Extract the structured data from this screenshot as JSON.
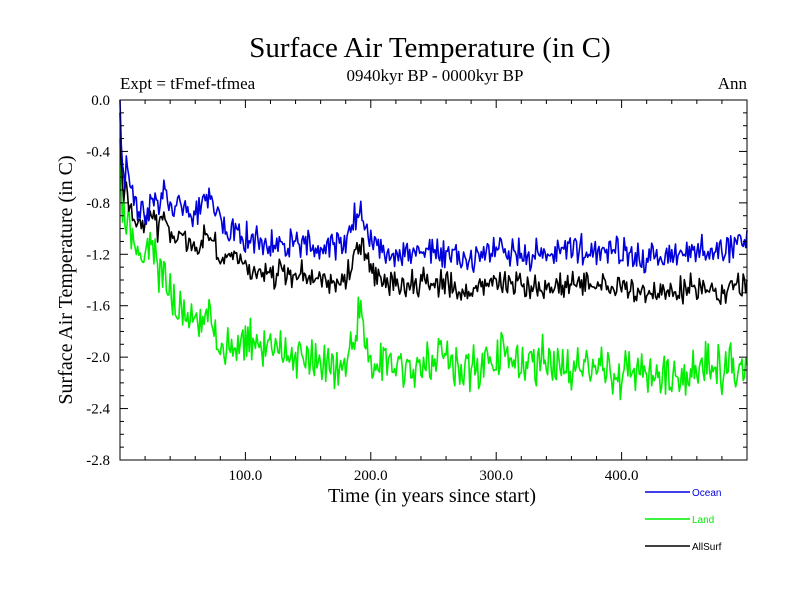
{
  "chart_data": {
    "type": "line",
    "title": "Surface Air Temperature (in C)",
    "subtitle": "0940kyr BP - 0000kyr BP",
    "left_label": "Expt = tFmef-tfmea",
    "right_label": "Ann",
    "xlabel": "Time (in years since start)",
    "ylabel": "Surface Air Temperature (in C)",
    "xlim": [
      0,
      500
    ],
    "ylim": [
      -2.8,
      0.0
    ],
    "x_ticks": [
      100,
      200,
      300,
      400
    ],
    "x_tick_labels": [
      "100.0",
      "200.0",
      "300.0",
      "400.0"
    ],
    "y_ticks": [
      0.0,
      -0.4,
      -0.8,
      -1.2,
      -1.6,
      -2.0,
      -2.4,
      -2.8
    ],
    "y_tick_labels": [
      "0.0",
      "-0.4",
      "-0.8",
      "-1.2",
      "-1.6",
      "-2.0",
      "-2.4",
      "-2.8"
    ],
    "legend_position": "bottom-right, outside plot",
    "series": [
      {
        "name": "Ocean",
        "color": "#0000dd",
        "x": [
          0,
          1,
          2,
          3,
          5,
          8,
          10,
          15,
          20,
          25,
          30,
          35,
          40,
          45,
          50,
          60,
          70,
          80,
          90,
          100,
          120,
          140,
          160,
          180,
          190,
          200,
          220,
          240,
          260,
          280,
          300,
          320,
          340,
          360,
          380,
          400,
          420,
          440,
          460,
          480,
          500
        ],
        "values": [
          0.0,
          -0.35,
          -0.5,
          -0.6,
          -0.55,
          -0.65,
          -0.8,
          -0.85,
          -0.9,
          -0.75,
          -0.85,
          -0.7,
          -0.8,
          -0.85,
          -0.8,
          -0.9,
          -0.75,
          -0.95,
          -1.0,
          -1.05,
          -1.15,
          -1.1,
          -1.15,
          -1.1,
          -0.85,
          -1.1,
          -1.2,
          -1.15,
          -1.2,
          -1.25,
          -1.15,
          -1.2,
          -1.2,
          -1.15,
          -1.2,
          -1.15,
          -1.25,
          -1.2,
          -1.15,
          -1.2,
          -1.1
        ]
      },
      {
        "name": "Land",
        "color": "#00ee00",
        "x": [
          0,
          1,
          2,
          3,
          5,
          8,
          10,
          15,
          20,
          25,
          30,
          35,
          40,
          45,
          50,
          60,
          70,
          80,
          90,
          100,
          120,
          140,
          160,
          180,
          190,
          200,
          220,
          240,
          260,
          280,
          300,
          320,
          340,
          360,
          380,
          400,
          420,
          440,
          460,
          480,
          500
        ],
        "values": [
          -0.3,
          -0.7,
          -0.95,
          -0.9,
          -1.0,
          -1.05,
          -1.15,
          -1.2,
          -1.25,
          -1.2,
          -1.35,
          -1.3,
          -1.5,
          -1.6,
          -1.65,
          -1.75,
          -1.7,
          -1.85,
          -1.9,
          -1.85,
          -1.95,
          -2.0,
          -2.05,
          -2.1,
          -1.7,
          -2.0,
          -2.05,
          -2.1,
          -2.0,
          -2.1,
          -1.95,
          -2.05,
          -2.0,
          -2.1,
          -2.05,
          -2.15,
          -2.1,
          -2.2,
          -2.05,
          -2.1,
          -2.0
        ]
      },
      {
        "name": "AllSurf",
        "color": "#000000",
        "x": [
          0,
          1,
          2,
          3,
          5,
          8,
          10,
          15,
          20,
          25,
          30,
          35,
          40,
          45,
          50,
          60,
          70,
          80,
          90,
          100,
          120,
          140,
          160,
          180,
          190,
          200,
          220,
          240,
          260,
          280,
          300,
          320,
          340,
          360,
          380,
          400,
          420,
          440,
          460,
          480,
          500
        ],
        "values": [
          -0.1,
          -0.45,
          -0.65,
          -0.7,
          -0.7,
          -0.8,
          -0.9,
          -0.95,
          -1.0,
          -0.9,
          -1.0,
          -0.9,
          -1.05,
          -1.1,
          -1.05,
          -1.15,
          -1.05,
          -1.2,
          -1.25,
          -1.3,
          -1.35,
          -1.35,
          -1.4,
          -1.4,
          -1.1,
          -1.35,
          -1.45,
          -1.4,
          -1.45,
          -1.5,
          -1.4,
          -1.45,
          -1.45,
          -1.45,
          -1.45,
          -1.45,
          -1.5,
          -1.5,
          -1.45,
          -1.5,
          -1.4
        ]
      }
    ]
  }
}
